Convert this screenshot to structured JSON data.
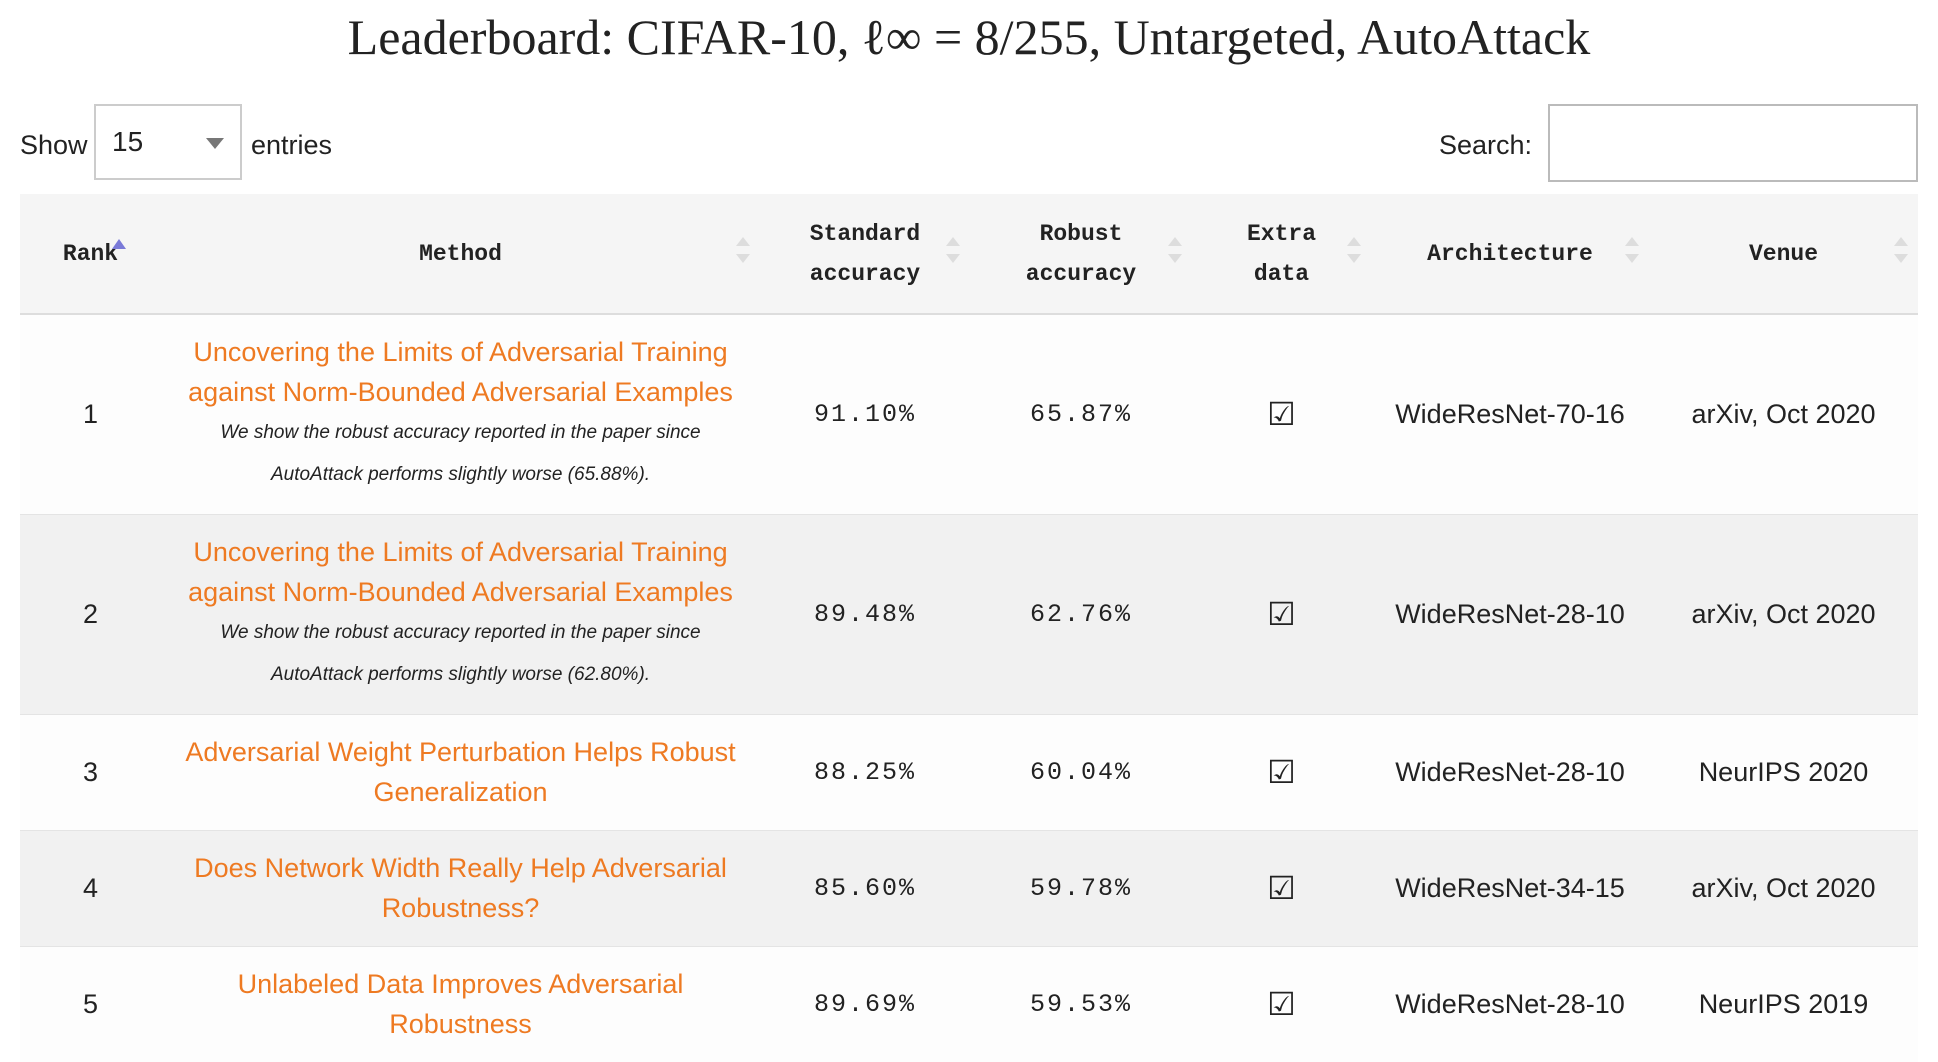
{
  "header": {
    "title": "Leaderboard: CIFAR-10, ℓ∞ = 8/255, Untargeted, AutoAttack"
  },
  "controls": {
    "show_label": "Show",
    "entries_value": "15",
    "entries_label": "entries",
    "search_label": "Search:"
  },
  "table": {
    "columns": [
      [
        "Rank"
      ],
      [
        "Method"
      ],
      [
        "Standard",
        "accuracy"
      ],
      [
        "Robust",
        "accuracy"
      ],
      [
        "Extra",
        "data"
      ],
      [
        "Architecture"
      ],
      [
        "Venue"
      ]
    ],
    "rows": [
      {
        "rank": "1",
        "method": "Uncovering the Limits of Adversarial Training against Norm-Bounded Adversarial Examples",
        "note": "We show the robust accuracy reported in the paper since AutoAttack performs slightly worse (65.88%).",
        "standard": "91.10%",
        "robust": "65.87%",
        "extra": "☑",
        "architecture": "WideResNet-70-16",
        "venue": "arXiv, Oct 2020"
      },
      {
        "rank": "2",
        "method": "Uncovering the Limits of Adversarial Training against Norm-Bounded Adversarial Examples",
        "note": "We show the robust accuracy reported in the paper since AutoAttack performs slightly worse (62.80%).",
        "standard": "89.48%",
        "robust": "62.76%",
        "extra": "☑",
        "architecture": "WideResNet-28-10",
        "venue": "arXiv, Oct 2020"
      },
      {
        "rank": "3",
        "method": "Adversarial Weight Perturbation Helps Robust Generalization",
        "standard": "88.25%",
        "robust": "60.04%",
        "extra": "☑",
        "architecture": "WideResNet-28-10",
        "venue": "NeurIPS 2020"
      },
      {
        "rank": "4",
        "method": "Does Network Width Really Help Adversarial Robustness?",
        "standard": "85.60%",
        "robust": "59.78%",
        "extra": "☑",
        "architecture": "WideResNet-34-15",
        "venue": "arXiv, Oct 2020"
      },
      {
        "rank": "5",
        "method": "Unlabeled Data Improves Adversarial Robustness",
        "standard": "89.69%",
        "robust": "59.53%",
        "extra": "☑",
        "architecture": "WideResNet-28-10",
        "venue": "NeurIPS 2019"
      }
    ]
  }
}
